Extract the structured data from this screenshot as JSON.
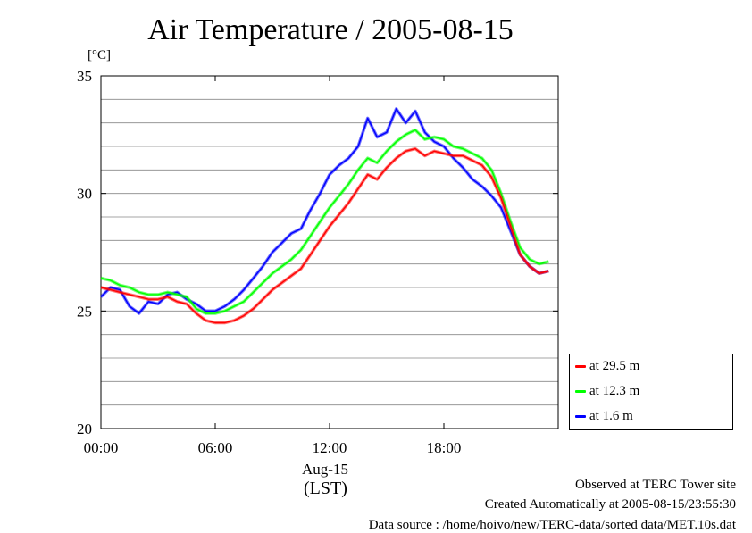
{
  "chart_data": {
    "type": "line",
    "title": "Air Temperature / 2005-08-15",
    "ylabel": "[°C]",
    "xlabel": "(LST)",
    "x_date_label": "Aug-15",
    "xlim": [
      0,
      24
    ],
    "ylim": [
      20,
      35
    ],
    "x_ticks": [
      {
        "value": 0,
        "label": "00:00"
      },
      {
        "value": 6,
        "label": "06:00"
      },
      {
        "value": 12,
        "label": "12:00"
      },
      {
        "value": 18,
        "label": "18:00"
      }
    ],
    "y_ticks": [
      {
        "value": 20,
        "label": "20"
      },
      {
        "value": 25,
        "label": "25"
      },
      {
        "value": 30,
        "label": "30"
      },
      {
        "value": 35,
        "label": "35"
      }
    ],
    "grid": true,
    "legend_position": "right-bottom, outside plot",
    "x": [
      0,
      0.5,
      1,
      1.5,
      2,
      2.5,
      3,
      3.5,
      4,
      4.5,
      5,
      5.5,
      6,
      6.5,
      7,
      7.5,
      8,
      8.5,
      9,
      9.5,
      10,
      10.5,
      11,
      11.5,
      12,
      12.5,
      13,
      13.5,
      14,
      14.5,
      15,
      15.5,
      16,
      16.5,
      17,
      17.5,
      18,
      18.5,
      19,
      19.5,
      20,
      20.5,
      21,
      21.5,
      22,
      22.5,
      23,
      23.5
    ],
    "series": [
      {
        "name": "at 29.5 m",
        "color": "#ff0000",
        "values": [
          26.0,
          25.9,
          25.8,
          25.7,
          25.6,
          25.5,
          25.5,
          25.6,
          25.4,
          25.3,
          24.9,
          24.6,
          24.5,
          24.5,
          24.6,
          24.8,
          25.1,
          25.5,
          25.9,
          26.2,
          26.5,
          26.8,
          27.4,
          28.0,
          28.6,
          29.1,
          29.6,
          30.2,
          30.8,
          30.6,
          31.1,
          31.5,
          31.8,
          31.9,
          31.6,
          31.8,
          31.7,
          31.6,
          31.6,
          31.4,
          31.2,
          30.7,
          29.8,
          28.6,
          27.4,
          26.9,
          26.6,
          26.7
        ]
      },
      {
        "name": "at 12.3 m",
        "color": "#00ff00",
        "values": [
          26.4,
          26.3,
          26.1,
          26.0,
          25.8,
          25.7,
          25.7,
          25.8,
          25.7,
          25.6,
          25.1,
          24.9,
          24.9,
          25.0,
          25.2,
          25.4,
          25.8,
          26.2,
          26.6,
          26.9,
          27.2,
          27.6,
          28.2,
          28.8,
          29.4,
          29.9,
          30.4,
          31.0,
          31.5,
          31.3,
          31.8,
          32.2,
          32.5,
          32.7,
          32.3,
          32.4,
          32.3,
          32.0,
          31.9,
          31.7,
          31.5,
          31.0,
          30.0,
          28.8,
          27.7,
          27.2,
          27.0,
          27.1
        ]
      },
      {
        "name": "at 1.6 m",
        "color": "#0000ff",
        "values": [
          25.6,
          26.0,
          25.9,
          25.2,
          24.9,
          25.4,
          25.3,
          25.7,
          25.8,
          25.5,
          25.3,
          25.0,
          25.0,
          25.2,
          25.5,
          25.9,
          26.4,
          26.9,
          27.5,
          27.9,
          28.3,
          28.5,
          29.3,
          30.0,
          30.8,
          31.2,
          31.5,
          32.0,
          33.2,
          32.4,
          32.6,
          33.6,
          33.0,
          33.5,
          32.6,
          32.2,
          32.0,
          31.5,
          31.1,
          30.6,
          30.3,
          29.9,
          29.4,
          28.4,
          27.4,
          26.9,
          26.6,
          26.7
        ]
      }
    ]
  },
  "footer": {
    "observed": "Observed at TERC Tower site",
    "created": "Created Automatically at 2005-08-15/23:55:30",
    "source": "Data source : /home/hoivo/new/TERC-data/sorted  data/MET.10s.dat"
  }
}
